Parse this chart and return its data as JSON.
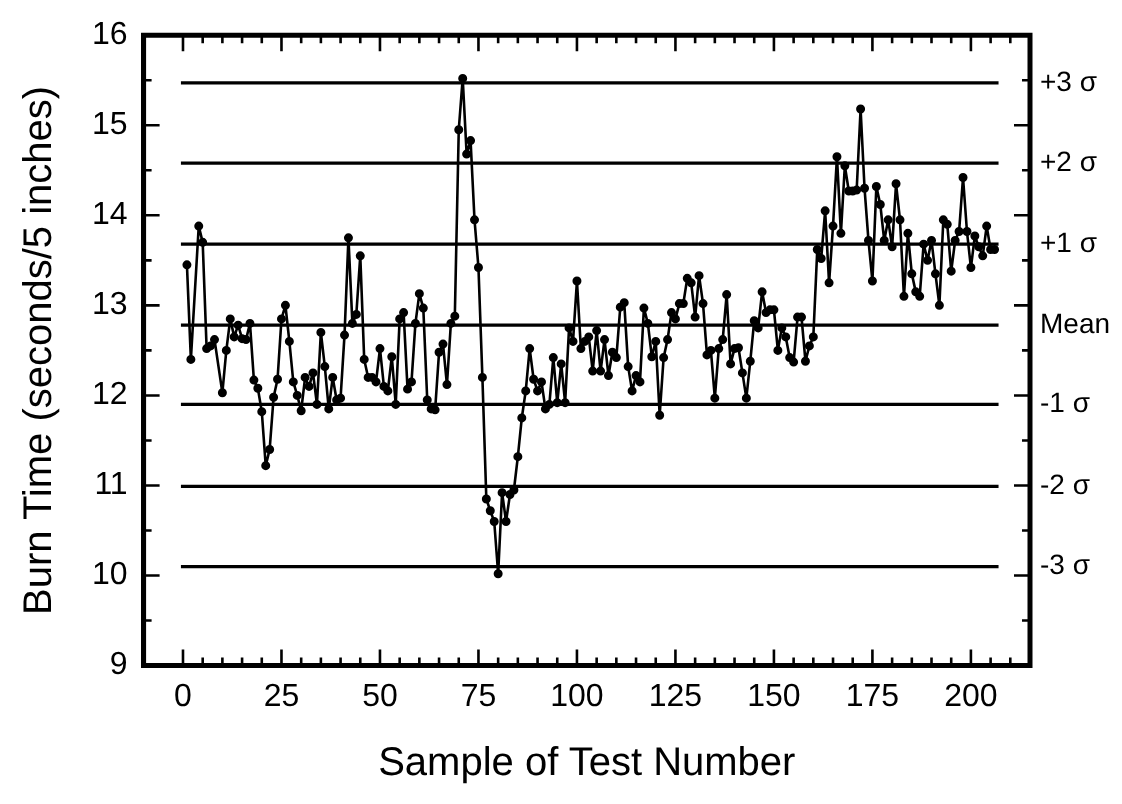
{
  "chart_data": {
    "type": "line",
    "xlabel": "Sample of Test Number",
    "ylabel": "Burn Time (seconds/5 inches)",
    "xlim": [
      -10,
      215
    ],
    "ylim": [
      9,
      16
    ],
    "xticks": [
      0,
      {
        "value": 5,
        "label": null
      },
      {
        "value": 10,
        "label": null
      },
      {
        "value": 15,
        "label": null
      },
      {
        "value": 20,
        "label": null
      },
      25,
      {
        "value": 30,
        "label": null
      },
      {
        "value": 35,
        "label": null
      },
      {
        "value": 40,
        "label": null
      },
      {
        "value": 45,
        "label": null
      },
      50,
      {
        "value": 55,
        "label": null
      },
      {
        "value": 60,
        "label": null
      },
      {
        "value": 65,
        "label": null
      },
      {
        "value": 70,
        "label": null
      },
      75,
      {
        "value": 80,
        "label": null
      },
      {
        "value": 85,
        "label": null
      },
      {
        "value": 90,
        "label": null
      },
      {
        "value": 95,
        "label": null
      },
      100,
      {
        "value": 105,
        "label": null
      },
      {
        "value": 110,
        "label": null
      },
      {
        "value": 115,
        "label": null
      },
      {
        "value": 120,
        "label": null
      },
      125,
      {
        "value": 130,
        "label": null
      },
      {
        "value": 135,
        "label": null
      },
      {
        "value": 140,
        "label": null
      },
      {
        "value": 145,
        "label": null
      },
      150,
      {
        "value": 155,
        "label": null
      },
      {
        "value": 160,
        "label": null
      },
      {
        "value": 165,
        "label": null
      },
      {
        "value": 170,
        "label": null
      },
      175,
      {
        "value": 180,
        "label": null
      },
      {
        "value": 185,
        "label": null
      },
      {
        "value": 190,
        "label": null
      },
      {
        "value": 195,
        "label": null
      },
      200,
      {
        "value": 205,
        "label": null
      },
      {
        "value": 210,
        "label": null
      }
    ],
    "yticks": [
      9,
      {
        "value": 9.5,
        "label": null
      },
      10,
      {
        "value": 10.5,
        "label": null
      },
      11,
      {
        "value": 11.5,
        "label": null
      },
      12,
      {
        "value": 12.5,
        "label": null
      },
      13,
      {
        "value": 13.5,
        "label": null
      },
      14,
      {
        "value": 14.5,
        "label": null
      },
      15,
      {
        "value": 15.5,
        "label": null
      },
      16
    ],
    "grid": false,
    "legend": false,
    "marker": "circle",
    "line_style": "solid",
    "series": [
      {
        "color": "#000000",
        "x": [
          1,
          2,
          4,
          5,
          6,
          7,
          8,
          10,
          11,
          12,
          13,
          14,
          15,
          16,
          17,
          18,
          19,
          20,
          21,
          22,
          23,
          24,
          25,
          26,
          27,
          28,
          29,
          30,
          31,
          32,
          33,
          34,
          35,
          36,
          37,
          38,
          39,
          40,
          41,
          42,
          43,
          44,
          45,
          46,
          47,
          48,
          49,
          50,
          51,
          52,
          53,
          54,
          55,
          56,
          57,
          58,
          59,
          60,
          61,
          62,
          63,
          64,
          65,
          66,
          67,
          68,
          69,
          70,
          71,
          72,
          73,
          74,
          75,
          76,
          77,
          78,
          79,
          80,
          81,
          82,
          83,
          84,
          85,
          86,
          87,
          88,
          89,
          90,
          91,
          92,
          93,
          94,
          95,
          96,
          97,
          98,
          99,
          100,
          101,
          102,
          103,
          104,
          105,
          106,
          107,
          108,
          109,
          110,
          111,
          112,
          113,
          114,
          115,
          116,
          117,
          118,
          119,
          120,
          121,
          122,
          123,
          124,
          125,
          126,
          127,
          128,
          129,
          130,
          131,
          132,
          133,
          134,
          135,
          136,
          137,
          138,
          139,
          140,
          141,
          142,
          143,
          144,
          145,
          146,
          147,
          148,
          149,
          150,
          151,
          152,
          153,
          154,
          155,
          156,
          157,
          158,
          159,
          160,
          161,
          162,
          163,
          164,
          165,
          166,
          167,
          168,
          169,
          170,
          171,
          172,
          173,
          174,
          175,
          176,
          177,
          178,
          179,
          180,
          181,
          182,
          183,
          184,
          185,
          186,
          187,
          188,
          189,
          190,
          191,
          192,
          193,
          194,
          195,
          196,
          197,
          198,
          199,
          200,
          201,
          202,
          203,
          204,
          205,
          206
        ],
        "values": [
          13.45,
          12.4,
          13.88,
          13.7,
          12.52,
          12.55,
          12.62,
          12.03,
          12.5,
          12.85,
          12.65,
          12.78,
          12.63,
          12.62,
          12.8,
          12.17,
          12.08,
          11.82,
          11.22,
          11.4,
          11.98,
          12.18,
          12.85,
          13.0,
          12.6,
          12.15,
          12.0,
          11.83,
          12.2,
          12.1,
          12.25,
          11.9,
          12.7,
          12.32,
          11.85,
          12.2,
          11.95,
          11.97,
          12.67,
          13.75,
          12.8,
          12.9,
          13.55,
          12.4,
          12.2,
          12.2,
          12.15,
          12.52,
          12.1,
          12.05,
          12.43,
          11.9,
          12.85,
          12.92,
          12.07,
          12.15,
          12.8,
          13.13,
          12.97,
          11.95,
          11.85,
          11.84,
          12.48,
          12.57,
          12.12,
          12.8,
          12.88,
          14.95,
          15.52,
          14.68,
          14.83,
          13.95,
          13.42,
          12.2,
          10.85,
          10.72,
          10.6,
          10.02,
          10.92,
          10.6,
          10.9,
          10.95,
          11.32,
          11.75,
          12.05,
          12.52,
          12.18,
          12.05,
          12.15,
          11.85,
          11.9,
          12.42,
          11.92,
          12.35,
          11.92,
          12.75,
          12.6,
          13.27,
          12.52,
          12.6,
          12.65,
          12.27,
          12.72,
          12.27,
          12.62,
          12.22,
          12.48,
          12.42,
          12.98,
          13.03,
          12.32,
          12.05,
          12.22,
          12.15,
          12.97,
          12.8,
          12.43,
          12.6,
          11.78,
          12.42,
          12.62,
          12.92,
          12.85,
          13.02,
          13.02,
          13.3,
          13.25,
          12.87,
          13.33,
          13.02,
          12.45,
          12.5,
          11.97,
          12.52,
          12.62,
          13.12,
          12.35,
          12.52,
          12.53,
          12.25,
          11.97,
          12.38,
          12.83,
          12.75,
          13.15,
          12.92,
          12.95,
          12.95,
          12.5,
          12.75,
          12.65,
          12.42,
          12.37,
          12.87,
          12.87,
          12.38,
          12.55,
          12.65,
          13.62,
          13.52,
          14.05,
          13.25,
          13.88,
          14.65,
          13.8,
          14.55,
          14.27,
          14.27,
          14.28,
          15.18,
          14.3,
          13.72,
          13.27,
          14.32,
          14.12,
          13.72,
          13.95,
          13.65,
          14.35,
          13.95,
          13.1,
          13.8,
          13.35,
          13.15,
          13.1,
          13.68,
          13.5,
          13.72,
          13.35,
          13.0,
          13.95,
          13.9,
          13.38,
          13.72,
          13.82,
          14.42,
          13.82,
          13.42,
          13.77,
          13.65,
          13.55,
          13.88,
          13.62,
          13.62
        ]
      }
    ],
    "ref_lines": [
      {
        "axis": "y",
        "value": 15.47,
        "label": "+3 σ",
        "color": "#000000",
        "line_style": "solid"
      },
      {
        "axis": "y",
        "value": 14.58,
        "label": "+2 σ",
        "color": "#000000",
        "line_style": "solid"
      },
      {
        "axis": "y",
        "value": 13.68,
        "label": "+1 σ",
        "color": "#000000",
        "line_style": "solid"
      },
      {
        "axis": "y",
        "value": 12.78,
        "label": "Mean",
        "color": "#000000",
        "line_style": "solid"
      },
      {
        "axis": "y",
        "value": 11.9,
        "label": "-1 σ",
        "color": "#000000",
        "line_style": "solid"
      },
      {
        "axis": "y",
        "value": 10.99,
        "label": "-2 σ",
        "color": "#000000",
        "line_style": "solid"
      },
      {
        "axis": "y",
        "value": 10.1,
        "label": "-3 σ",
        "color": "#000000",
        "line_style": "solid"
      }
    ]
  }
}
